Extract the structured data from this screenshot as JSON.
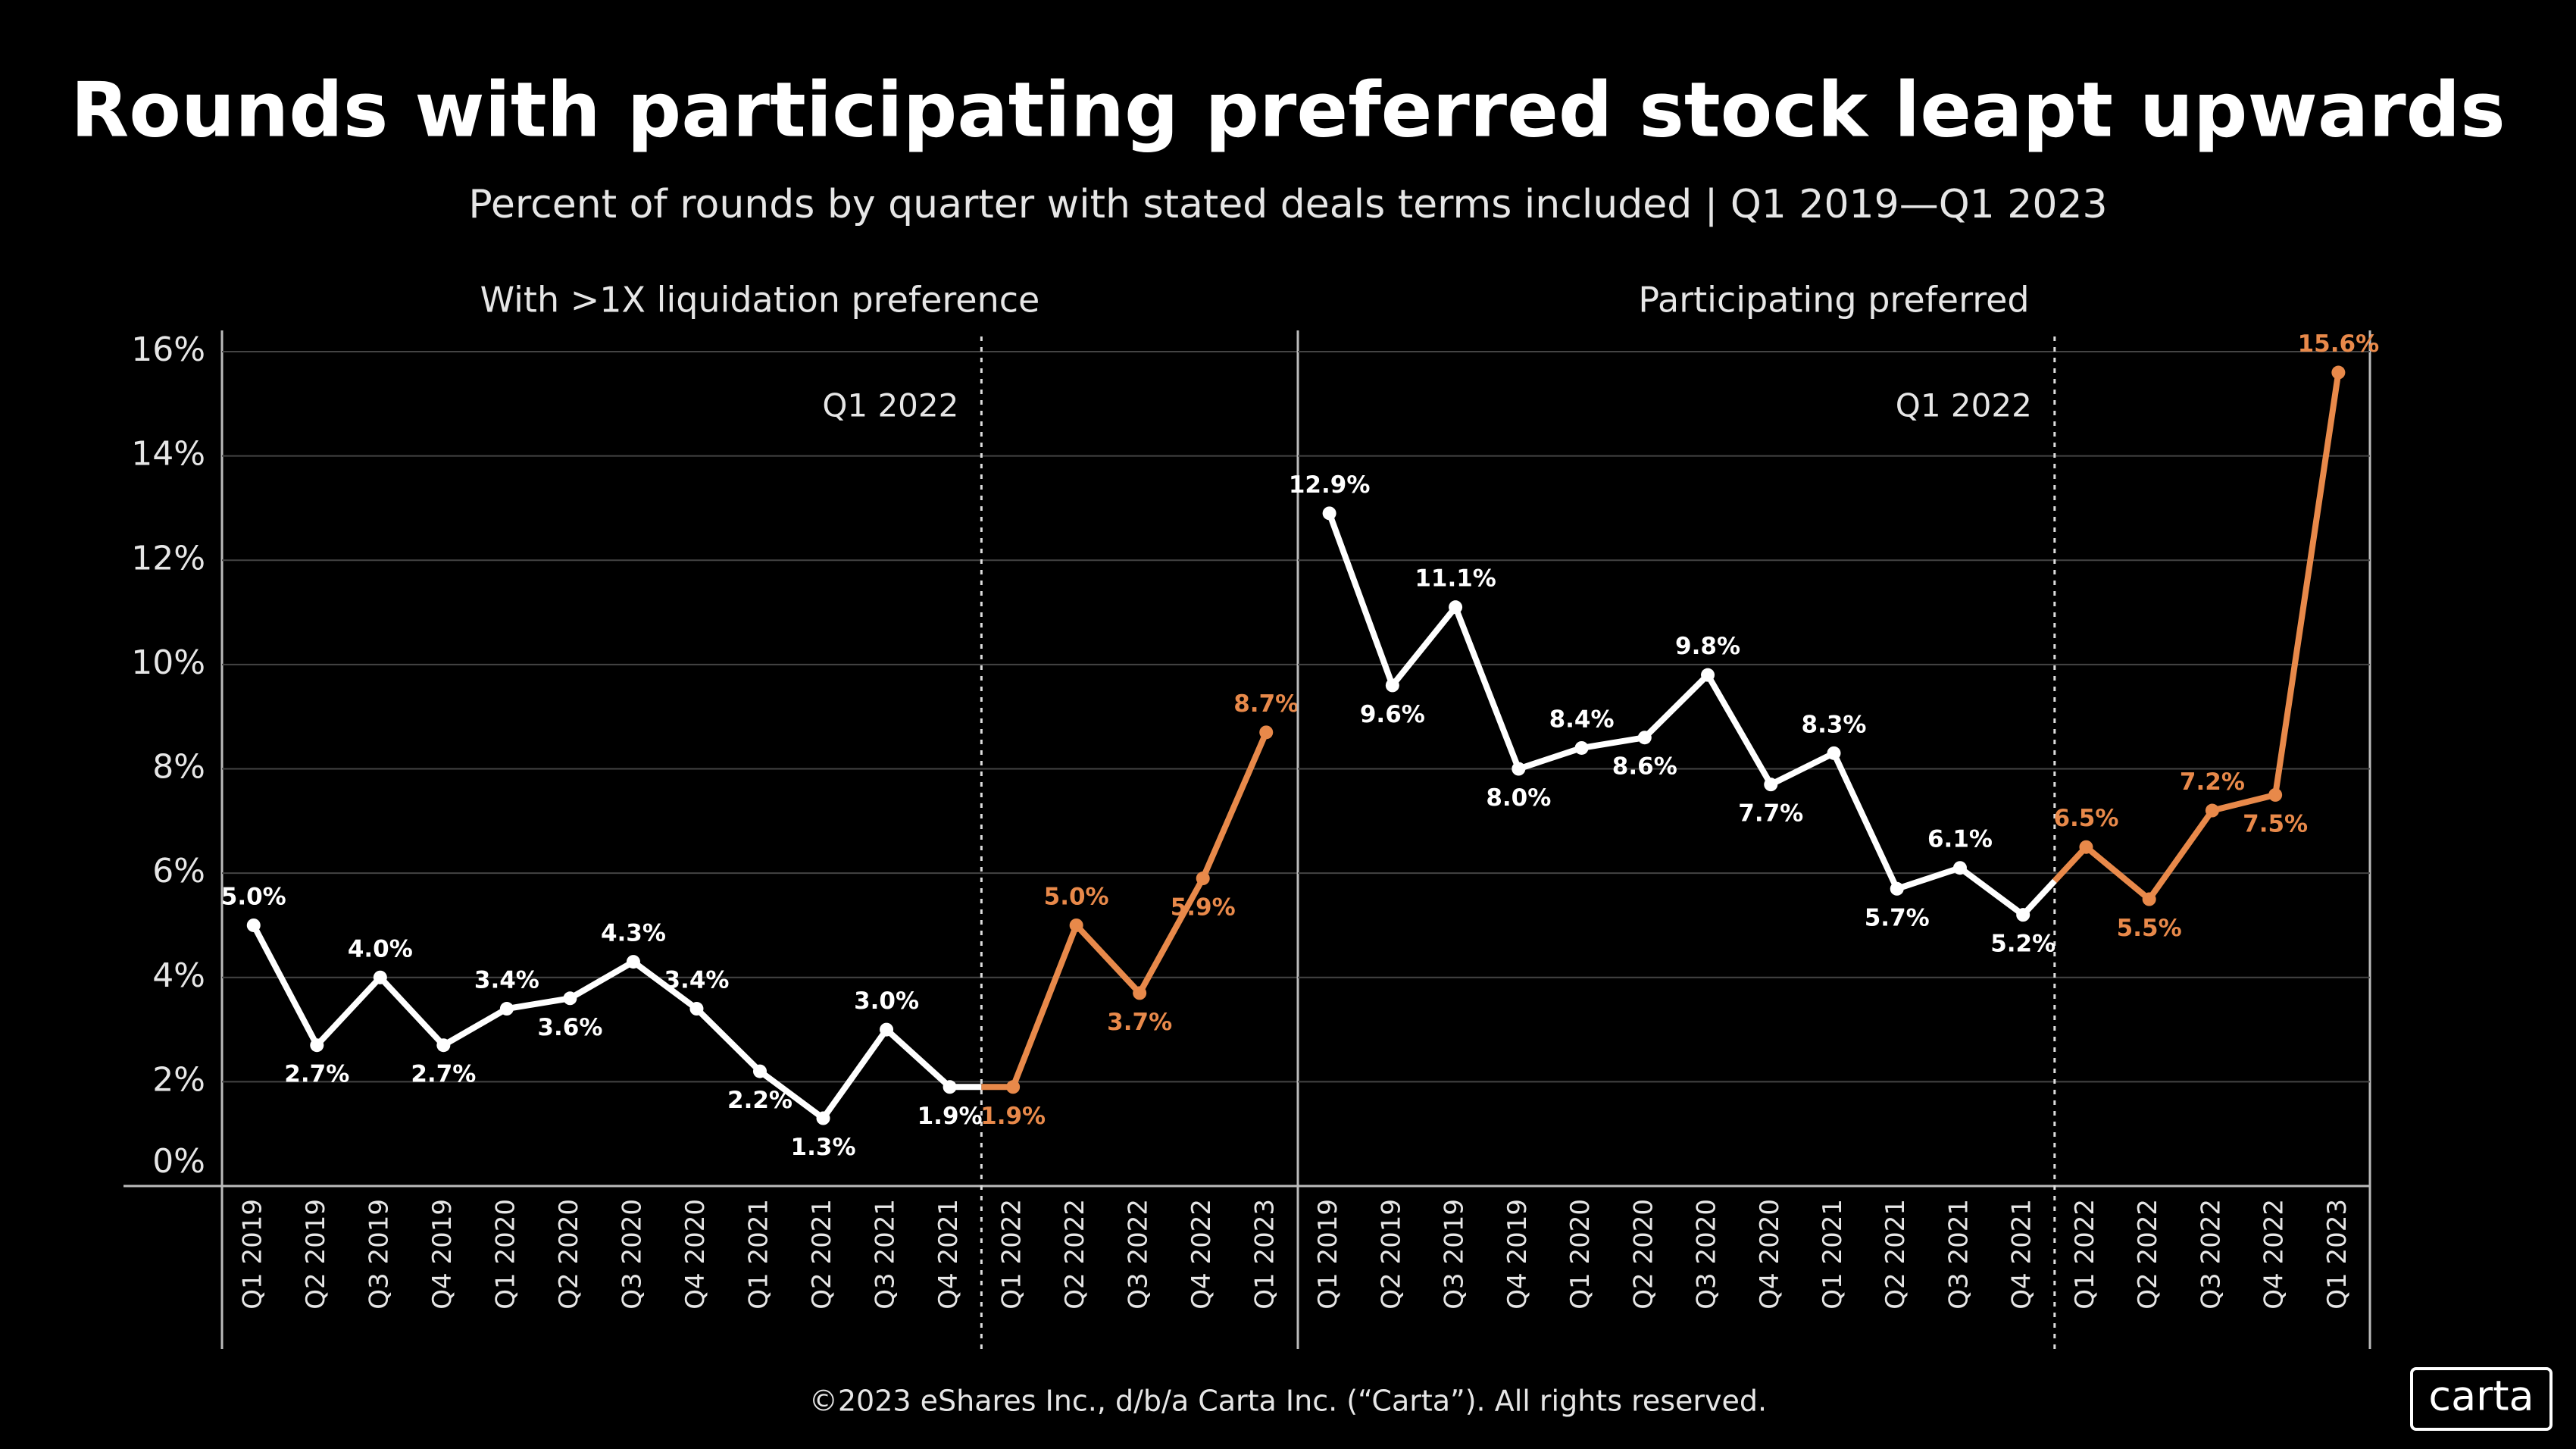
{
  "title": "Rounds with participating preferred stock leapt upwards",
  "subtitle": "Percent of rounds by quarter with stated deals terms included | Q1 2019—Q1 2023",
  "footer": "©2023 eShares Inc., d/b/a Carta Inc. (“Carta”). All rights reserved.",
  "logo": "carta",
  "chart_data": [
    {
      "type": "line",
      "title": "With >1X liquidation preference",
      "categories": [
        "Q1 2019",
        "Q2 2019",
        "Q3 2019",
        "Q4 2019",
        "Q1 2020",
        "Q2 2020",
        "Q3 2020",
        "Q4 2020",
        "Q1 2021",
        "Q2 2021",
        "Q3 2021",
        "Q4 2021",
        "Q1 2022",
        "Q2 2022",
        "Q3 2022",
        "Q4 2022",
        "Q1 2023"
      ],
      "series": [
        {
          "color": "#ffffff",
          "values": [
            5.0,
            2.7,
            4.0,
            2.7,
            3.4,
            3.6,
            4.3,
            3.4,
            2.2,
            1.3,
            3.0,
            1.9,
            null,
            null,
            null,
            null,
            null
          ],
          "value_labels": [
            "5.0%",
            "2.7%",
            "4.0%",
            "2.7%",
            "3.4%",
            "3.6%",
            "4.3%",
            "3.4%",
            "2.2%",
            "1.3%",
            "3.0%",
            "1.9%",
            null,
            null,
            null,
            null,
            null
          ]
        },
        {
          "color": "#e8894a",
          "values": [
            null,
            null,
            null,
            null,
            null,
            null,
            null,
            null,
            null,
            null,
            null,
            null,
            1.9,
            5.0,
            3.7,
            5.9,
            8.7
          ],
          "value_labels": [
            null,
            null,
            null,
            null,
            null,
            null,
            null,
            null,
            null,
            null,
            null,
            null,
            "1.9%",
            "5.0%",
            "3.7%",
            "5.9%",
            "8.7%"
          ]
        }
      ],
      "annotation": "Q1 2022",
      "ylim": [
        0,
        16
      ],
      "yticks": [
        {
          "value": 0,
          "label": "0%"
        },
        {
          "value": 2,
          "label": "2%"
        },
        {
          "value": 4,
          "label": "4%"
        },
        {
          "value": 6,
          "label": "6%"
        },
        {
          "value": 8,
          "label": "8%"
        },
        {
          "value": 10,
          "label": "10%"
        },
        {
          "value": 12,
          "label": "12%"
        },
        {
          "value": 14,
          "label": "14%"
        },
        {
          "value": 16,
          "label": "16%"
        }
      ],
      "grid": true
    },
    {
      "type": "line",
      "title": "Participating preferred",
      "categories": [
        "Q1 2019",
        "Q2 2019",
        "Q3 2019",
        "Q4 2019",
        "Q1 2020",
        "Q2 2020",
        "Q3 2020",
        "Q4 2020",
        "Q1 2021",
        "Q2 2021",
        "Q3 2021",
        "Q4 2021",
        "Q1 2022",
        "Q2 2022",
        "Q3 2022",
        "Q4 2022",
        "Q1 2023"
      ],
      "series": [
        {
          "color": "#ffffff",
          "values": [
            12.9,
            9.6,
            11.1,
            8.0,
            8.4,
            8.6,
            9.8,
            7.7,
            8.3,
            5.7,
            6.1,
            5.2,
            null,
            null,
            null,
            null,
            null
          ],
          "value_labels": [
            "12.9%",
            "9.6%",
            "11.1%",
            "8.0%",
            "8.4%",
            "8.6%",
            "9.8%",
            "7.7%",
            "8.3%",
            "5.7%",
            "6.1%",
            "5.2%",
            null,
            null,
            null,
            null,
            null
          ]
        },
        {
          "color": "#e8894a",
          "values": [
            null,
            null,
            null,
            null,
            null,
            null,
            null,
            null,
            null,
            null,
            null,
            null,
            6.5,
            5.5,
            7.2,
            7.5,
            15.6
          ],
          "value_labels": [
            null,
            null,
            null,
            null,
            null,
            null,
            null,
            null,
            null,
            null,
            null,
            null,
            "6.5%",
            "5.5%",
            "7.2%",
            "7.5%",
            "15.6%"
          ]
        }
      ],
      "annotation": "Q1 2022",
      "ylim": [
        0,
        16
      ],
      "yticks": [
        0,
        2,
        4,
        6,
        8,
        10,
        12,
        14,
        16
      ],
      "grid": true
    }
  ]
}
